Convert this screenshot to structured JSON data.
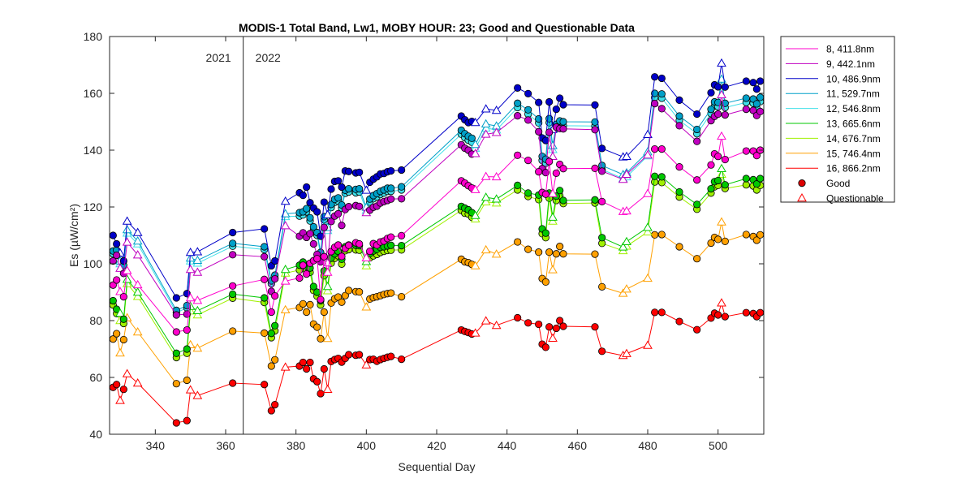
{
  "chart_data": {
    "type": "line",
    "title": "MODIS-1 Total Band,  Lw1, MOBY HOUR: 23;  Good and Questionable Data",
    "xlabel": "Sequential Day",
    "ylabel": "Es (µW/cm²)",
    "xlim": [
      327,
      513
    ],
    "ylim": [
      40,
      180
    ],
    "xticks": [
      340,
      360,
      380,
      400,
      420,
      440,
      460,
      480,
      500
    ],
    "yticks": [
      40,
      60,
      80,
      100,
      120,
      140,
      160,
      180
    ],
    "grid": false,
    "legend_position": "outside-right",
    "year_divider": {
      "x": 365,
      "left_label": "2021",
      "right_label": "2022"
    },
    "x": [
      328,
      329,
      330,
      331,
      332,
      335,
      346,
      349,
      350,
      352,
      362,
      371,
      373,
      374,
      377,
      381,
      382,
      383,
      384,
      385,
      386,
      387,
      388,
      389,
      390,
      391,
      392,
      393,
      394,
      395,
      397,
      398,
      400,
      401,
      402,
      403,
      404,
      405,
      406,
      407,
      410,
      427,
      428,
      429,
      430,
      431,
      434,
      437,
      443,
      446,
      449,
      450,
      451,
      452,
      453,
      454,
      455,
      456,
      465,
      467,
      473,
      474,
      480,
      482,
      484,
      489,
      494,
      498,
      499,
      500,
      501,
      502,
      508,
      510,
      511,
      512
    ],
    "flag": [
      "G",
      "G",
      "Q",
      "G",
      "Q",
      "Q",
      "G",
      "G",
      "Q",
      "Q",
      "G",
      "G",
      "G",
      "G",
      "Q",
      "G",
      "G",
      "G",
      "G",
      "G",
      "G",
      "G",
      "G",
      "Q",
      "G",
      "G",
      "G",
      "G",
      "G",
      "G",
      "G",
      "G",
      "Q",
      "G",
      "G",
      "G",
      "G",
      "G",
      "G",
      "G",
      "G",
      "G",
      "G",
      "G",
      "G",
      "Q",
      "Q",
      "Q",
      "G",
      "G",
      "G",
      "G",
      "G",
      "G",
      "Q",
      "G",
      "G",
      "G",
      "G",
      "G",
      "Q",
      "Q",
      "Q",
      "G",
      "G",
      "G",
      "G",
      "G",
      "G",
      "G",
      "Q",
      "G",
      "G",
      "G",
      "G",
      "G"
    ],
    "series": [
      {
        "name": "8, 411.8nm",
        "color": "#ff00cc",
        "values": [
          92.5,
          94.3,
          90.2,
          88.4,
          97.6,
          92.6,
          76.0,
          76.7,
          88.0,
          87.1,
          92.2,
          94.5,
          83.0,
          88.7,
          93.9,
          95.0,
          99.5,
          96.4,
          100.2,
          101.1,
          101.8,
          87.4,
          102.5,
          97.0,
          104.3,
          105.8,
          106.6,
          102.6,
          105.4,
          106.5,
          107.4,
          107.0,
          102.1,
          104.4,
          107.1,
          106.6,
          107.7,
          108.0,
          108.9,
          109.4,
          109.9,
          129.2,
          128.4,
          127.5,
          126.7,
          126.1,
          130.7,
          130.6,
          138.2,
          136.4,
          132.4,
          125.1,
          124.5,
          136.0,
          124.7,
          131.9,
          135.0,
          133.5,
          133.6,
          121.9,
          118.4,
          118.6,
          124.7,
          140.4,
          140.4,
          134.1,
          129.5,
          134.8,
          138.7,
          137.8,
          144.9,
          136.7,
          139.7,
          139.7,
          138.1,
          140.0
        ]
      },
      {
        "name": "9, 442.1nm",
        "color": "#c000c0",
        "values": [
          101.0,
          103.0,
          98.4,
          96.6,
          107.6,
          103.1,
          82.0,
          82.3,
          98.0,
          97.0,
          103.2,
          102.5,
          90.3,
          94.7,
          113.4,
          109.7,
          110.9,
          109.3,
          110.6,
          107.0,
          103.3,
          100.7,
          112.8,
          100.3,
          114.9,
          116.8,
          117.6,
          113.5,
          119.1,
          120.1,
          120.5,
          120.2,
          118.0,
          118.9,
          119.9,
          120.3,
          121.4,
          121.9,
          122.3,
          122.8,
          122.9,
          141.9,
          140.7,
          140.0,
          138.6,
          138.8,
          145.6,
          146.2,
          152.1,
          150.6,
          146.5,
          133.5,
          132.1,
          146.3,
          137.8,
          148.1,
          147.6,
          147.5,
          147.2,
          132.6,
          129.7,
          131.5,
          138.3,
          156.4,
          154.6,
          148.6,
          143.1,
          150.4,
          151.9,
          152.7,
          159.5,
          152.4,
          154.4,
          154.0,
          152.2,
          153.6
        ]
      },
      {
        "name": "10, 486.9nm",
        "color": "#0000c8",
        "values": [
          110.0,
          107.0,
          103.8,
          101.0,
          115.0,
          111.0,
          88.0,
          89.5,
          104.0,
          104.2,
          111.0,
          112.3,
          99.3,
          101.0,
          122.0,
          125.0,
          124.1,
          127.0,
          121.5,
          119.6,
          118.3,
          109.7,
          121.7,
          117.3,
          126.3,
          129.0,
          129.2,
          127.0,
          132.7,
          132.5,
          132.0,
          132.2,
          125.9,
          128.7,
          129.8,
          130.6,
          131.6,
          131.8,
          132.4,
          132.7,
          133.0,
          152.0,
          150.7,
          149.7,
          150.1,
          149.7,
          154.5,
          154.0,
          161.9,
          159.9,
          156.8,
          144.3,
          143.4,
          157.0,
          147.3,
          154.4,
          158.3,
          156.0,
          155.9,
          140.6,
          137.6,
          137.8,
          145.5,
          165.8,
          165.3,
          157.6,
          152.7,
          160.2,
          163.0,
          162.3,
          170.6,
          162.2,
          164.3,
          163.8,
          161.5,
          164.3
        ]
      },
      {
        "name": "11, 529.7nm",
        "color": "#00a0c8",
        "values": [
          104.5,
          104.8,
          101.0,
          99.5,
          112.0,
          108.0,
          83.6,
          85.3,
          102.0,
          101.2,
          107.2,
          106.0,
          94.0,
          96.0,
          117.6,
          118.0,
          118.3,
          119.4,
          116.2,
          113.0,
          111.0,
          104.0,
          116.6,
          112.8,
          120.9,
          122.7,
          123.2,
          120.7,
          125.9,
          126.4,
          126.2,
          126.4,
          119.9,
          122.8,
          124.0,
          124.7,
          125.5,
          126.0,
          126.6,
          126.6,
          127.1,
          147.0,
          145.8,
          144.9,
          144.2,
          142.0,
          149.2,
          148.5,
          156.5,
          154.2,
          151.0,
          137.8,
          136.8,
          151.1,
          141.6,
          149.1,
          150.3,
          150.0,
          149.9,
          134.6,
          131.4,
          132.0,
          139.4,
          160.0,
          159.8,
          152.0,
          147.3,
          154.4,
          157.0,
          156.8,
          165.0,
          156.5,
          158.3,
          158.0,
          156.3,
          158.6
        ]
      },
      {
        "name": "12, 546.8nm",
        "color": "#40e0e8",
        "values": [
          103.5,
          103.8,
          100.0,
          98.5,
          110.8,
          107.0,
          82.8,
          84.5,
          101.0,
          100.2,
          106.2,
          105.0,
          93.0,
          95.0,
          116.6,
          116.8,
          117.2,
          118.3,
          115.1,
          111.8,
          110.0,
          102.9,
          115.5,
          111.7,
          119.8,
          121.6,
          122.1,
          119.6,
          124.8,
          125.3,
          125.0,
          125.3,
          118.8,
          121.7,
          122.9,
          123.6,
          124.4,
          124.9,
          125.5,
          125.5,
          126.0,
          145.6,
          144.4,
          143.5,
          142.8,
          140.6,
          147.8,
          147.1,
          155.0,
          152.7,
          149.6,
          136.4,
          135.4,
          149.7,
          140.2,
          147.7,
          148.9,
          148.6,
          148.5,
          133.2,
          130.0,
          130.6,
          138.0,
          158.5,
          158.3,
          150.5,
          145.8,
          152.9,
          155.5,
          155.3,
          163.5,
          155.0,
          156.8,
          156.5,
          154.8,
          157.1
        ]
      },
      {
        "name": "13, 665.6nm",
        "color": "#00c800",
        "values": [
          87.0,
          84.0,
          82.6,
          80.5,
          94.5,
          90.0,
          68.5,
          70.0,
          85.0,
          83.5,
          89.3,
          88.0,
          75.5,
          78.2,
          98.0,
          99.5,
          100.6,
          99.0,
          98.5,
          92.0,
          90.0,
          87.0,
          97.5,
          92.0,
          102.0,
          103.5,
          104.4,
          101.6,
          106.0,
          106.6,
          106.5,
          106.4,
          100.8,
          103.6,
          104.5,
          105.1,
          105.8,
          106.0,
          106.3,
          106.5,
          106.4,
          120.2,
          119.6,
          119.0,
          118.0,
          117.0,
          123.4,
          122.8,
          127.6,
          124.9,
          124.2,
          112.3,
          110.8,
          124.9,
          116.4,
          123.8,
          125.8,
          122.3,
          122.5,
          109.2,
          105.9,
          107.8,
          112.8,
          130.8,
          130.6,
          125.3,
          120.9,
          126.4,
          128.9,
          129.3,
          133.5,
          127.8,
          130.0,
          129.6,
          128.1,
          130.0
        ]
      },
      {
        "name": "14, 676.7nm",
        "color": "#a0f000",
        "values": [
          85.5,
          82.5,
          80.0,
          79.0,
          93.0,
          88.5,
          67.0,
          68.5,
          83.4,
          82.0,
          87.9,
          86.4,
          74.0,
          76.4,
          96.7,
          97.8,
          99.2,
          97.7,
          97.0,
          90.6,
          88.6,
          85.5,
          95.8,
          90.5,
          100.2,
          101.9,
          102.8,
          99.9,
          104.6,
          105.0,
          104.9,
          104.8,
          99.3,
          102.1,
          102.8,
          103.3,
          104.0,
          104.4,
          104.7,
          104.8,
          104.9,
          118.8,
          117.8,
          117.5,
          116.4,
          115.8,
          121.8,
          121.4,
          126.0,
          123.7,
          122.6,
          110.6,
          109.2,
          123.1,
          115.0,
          122.3,
          124.0,
          121.2,
          121.4,
          107.2,
          104.6,
          106.2,
          111.2,
          128.8,
          128.6,
          123.5,
          119.2,
          124.9,
          127.1,
          127.6,
          131.5,
          126.5,
          127.8,
          127.4,
          126.0,
          127.6
        ]
      },
      {
        "name": "15, 746.4nm",
        "color": "#ffa000",
        "values": [
          73.5,
          75.4,
          68.6,
          73.3,
          81.0,
          76.0,
          57.8,
          59.0,
          71.5,
          70.3,
          76.3,
          75.6,
          64.0,
          66.2,
          83.8,
          84.6,
          85.9,
          83.0,
          85.6,
          78.8,
          77.7,
          73.6,
          83.0,
          73.7,
          86.2,
          87.7,
          88.3,
          86.5,
          88.8,
          90.6,
          90.2,
          90.1,
          84.8,
          87.6,
          88.1,
          88.4,
          88.8,
          89.2,
          89.5,
          89.7,
          88.4,
          101.6,
          100.7,
          100.4,
          99.8,
          99.3,
          104.9,
          103.4,
          107.7,
          105.1,
          104.1,
          94.8,
          93.6,
          104.1,
          97.9,
          103.5,
          106.1,
          103.5,
          103.4,
          91.9,
          89.6,
          91.1,
          94.9,
          110.2,
          110.3,
          106.0,
          101.8,
          107.3,
          109.3,
          108.6,
          114.7,
          107.9,
          110.3,
          109.6,
          108.3,
          110.2
        ]
      },
      {
        "name": "16, 866.2nm",
        "color": "#ff0000",
        "values": [
          56.5,
          57.5,
          51.9,
          55.8,
          61.3,
          58.0,
          44.0,
          44.8,
          55.6,
          53.6,
          58.0,
          57.5,
          48.3,
          50.4,
          63.6,
          64.0,
          65.3,
          63.0,
          65.3,
          59.5,
          58.5,
          54.3,
          63.0,
          55.8,
          65.6,
          66.3,
          66.7,
          65.4,
          66.7,
          68.0,
          67.8,
          68.0,
          64.4,
          66.3,
          66.4,
          65.7,
          66.3,
          66.7,
          67.1,
          67.4,
          66.4,
          76.7,
          76.2,
          75.8,
          75.3,
          75.6,
          79.9,
          78.3,
          81.0,
          79.2,
          78.7,
          71.7,
          70.6,
          77.8,
          73.8,
          77.3,
          80.0,
          78.0,
          77.8,
          69.2,
          67.7,
          68.4,
          71.3,
          82.9,
          82.9,
          79.7,
          76.8,
          80.9,
          82.6,
          82.0,
          86.2,
          81.4,
          82.8,
          82.5,
          81.4,
          82.8
        ]
      }
    ],
    "legend": {
      "good_label": "Good",
      "good_color": "#dd0000",
      "questionable_label": "Questionable",
      "questionable_color": "#ff0000"
    }
  }
}
